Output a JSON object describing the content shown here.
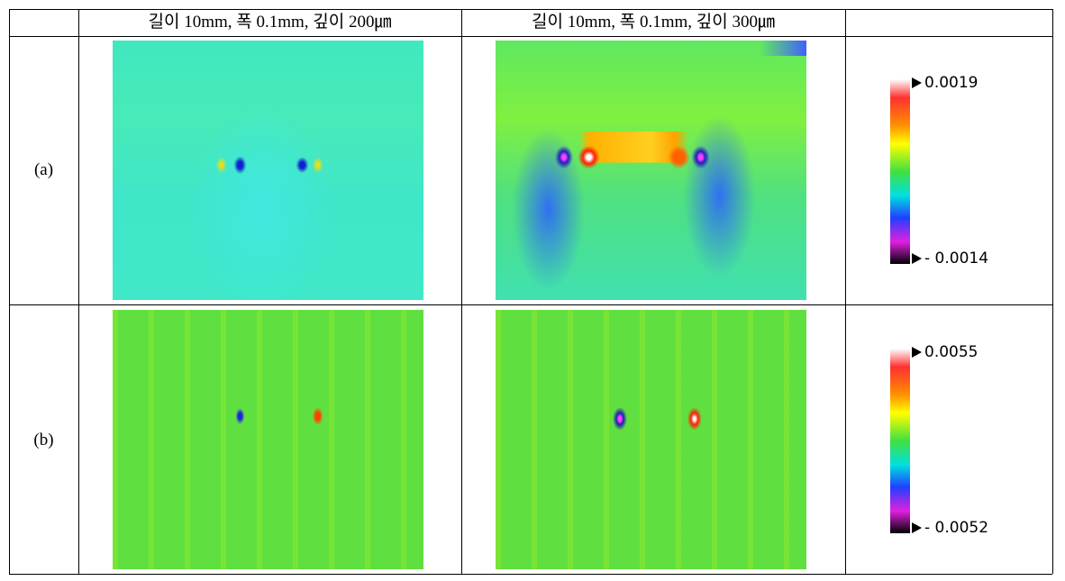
{
  "table": {
    "columns": [
      "길이 10mm, 폭 0.1mm, 깊이 200㎛",
      "길이 10mm, 폭 0.1mm, 깊이 300㎛"
    ],
    "rows": [
      {
        "label": "(a)",
        "scale_max": "0.0019",
        "scale_min": "- 0.0014"
      },
      {
        "label": "(b)",
        "scale_max": "0.0055",
        "scale_min": "- 0.0052"
      }
    ]
  }
}
